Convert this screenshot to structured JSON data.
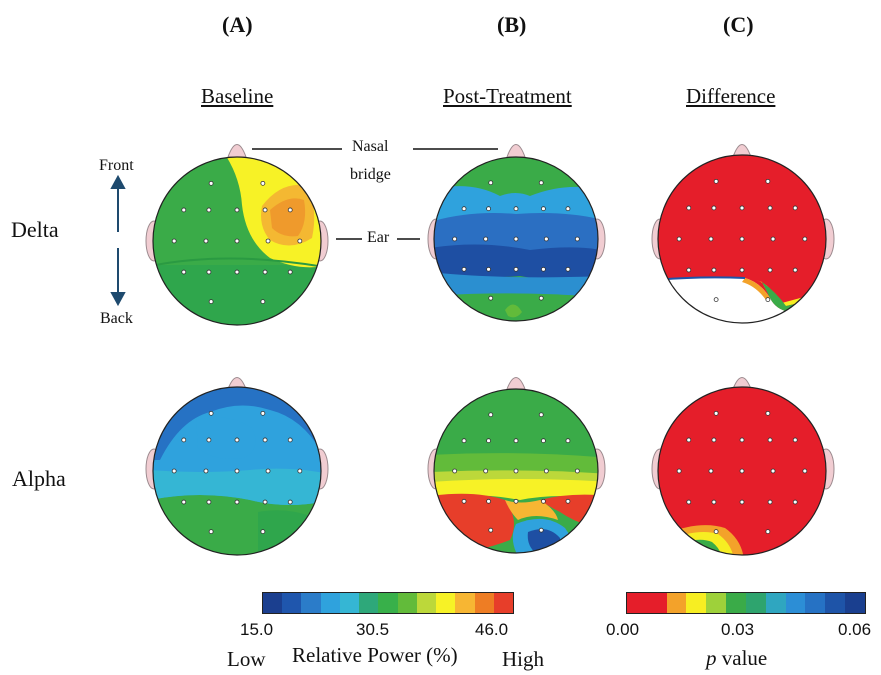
{
  "columns": [
    {
      "letter": "(A)",
      "title": "Baseline"
    },
    {
      "letter": "(B)",
      "title": "Post-Treatment"
    },
    {
      "letter": "(C)",
      "title": "Difference"
    }
  ],
  "rows": [
    {
      "label": "Delta"
    },
    {
      "label": "Alpha"
    }
  ],
  "annotations": {
    "front": "Front",
    "back": "Back",
    "nasal_line1": "Nasal",
    "nasal_line2": "bridge",
    "ear": "Ear"
  },
  "power_scale": {
    "ticks": [
      "15.0",
      "30.5",
      "46.0"
    ],
    "low": "Low",
    "label": "Relative Power (%)",
    "high": "High",
    "colors": [
      "#1b3f8f",
      "#1f56ad",
      "#2b7cc9",
      "#2fa2dd",
      "#35b6d4",
      "#2ea87a",
      "#38b04a",
      "#62bb3a",
      "#bcd83a",
      "#f7f226",
      "#f7b633",
      "#ee7d24",
      "#e73e2a"
    ]
  },
  "p_scale": {
    "ticks": [
      "0.00",
      "0.03",
      "0.06"
    ],
    "label_italic": "p",
    "label_rest": " value",
    "colors": [
      "#e51e2a",
      "#e51e2a",
      "#f3a22a",
      "#f7ee22",
      "#9ed13a",
      "#3aab48",
      "#2ea46e",
      "#2fa6c0",
      "#2c8ed6",
      "#2672c4",
      "#1e54a8",
      "#1a3f8f"
    ]
  },
  "colors": {
    "ear_fill": "#f1cdd2",
    "ear_stroke": "#9c8b8f",
    "electrode": "#ffffff"
  }
}
